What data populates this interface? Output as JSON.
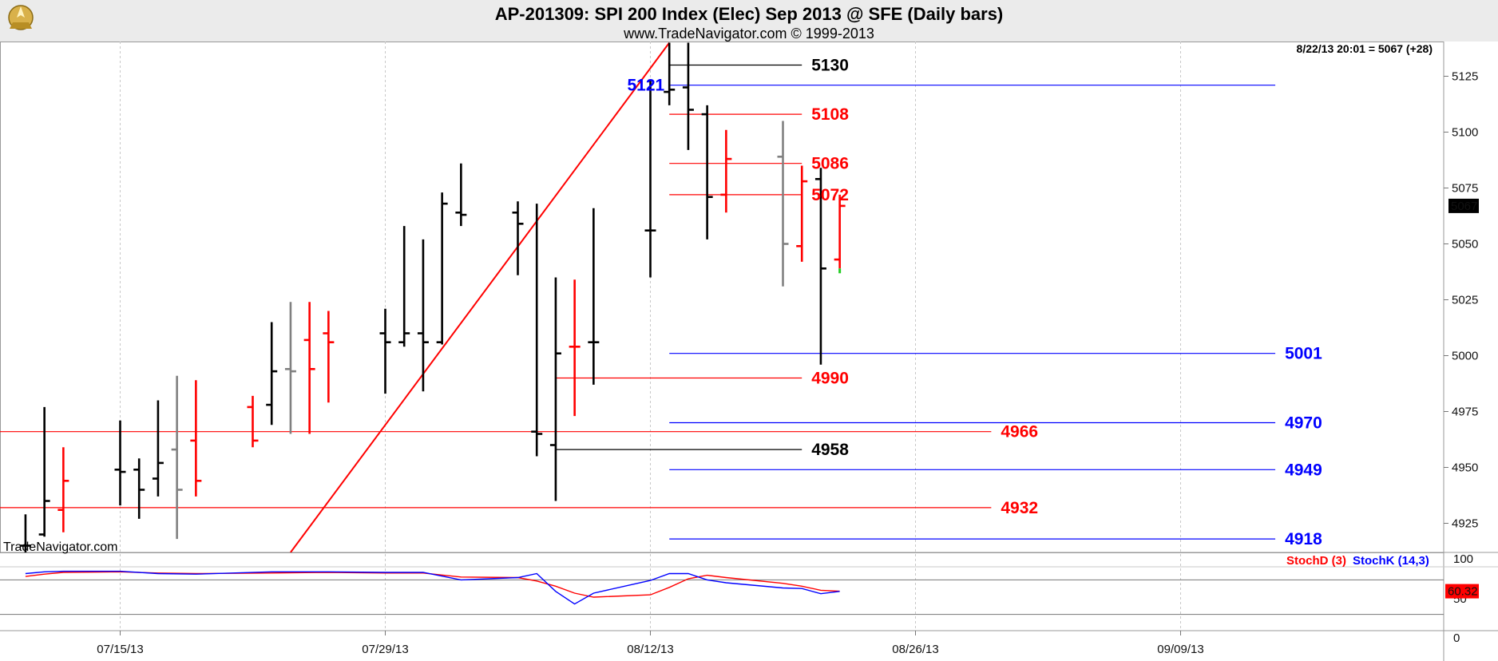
{
  "header": {
    "title": "AP-201309:  SPI 200 Index (Elec) Sep 2013 @ SFE  (Daily bars)",
    "subtitle": "www.TradeNavigator.com © 1999-2013",
    "last_quote": "8/22/13 20:01 = 5067 (+28)",
    "watermark": "TradeNavigator.com",
    "logo_icon": "trade-navigator-logo-icon"
  },
  "colors": {
    "up_bar": "#000000",
    "down_bar": "#ff0000",
    "neutral_bar": "#808080",
    "red_level": "#ff0000",
    "blue_level": "#0000ff",
    "black_level": "#000000",
    "trendline": "#ff0000",
    "stoch_d": "#ff0000",
    "stoch_k": "#0000ff",
    "last_price_box": "#000000",
    "stoch_value_box": "#ff0000"
  },
  "chart_data": [
    {
      "type": "ohlc",
      "x_ticks": [
        "07/15/13",
        "07/29/13",
        "08/12/13",
        "08/26/13",
        "09/09/13"
      ],
      "y_ticks": [
        4925,
        4950,
        4975,
        5000,
        5025,
        5050,
        5075,
        5100,
        5125
      ],
      "ylim": [
        4912,
        5140
      ],
      "last_price_label": "5067",
      "bars": [
        {
          "date": "07/10/13",
          "open": 4915,
          "high": 4929,
          "low": 4910,
          "close": 4915,
          "color": "black"
        },
        {
          "date": "07/11/13",
          "open": 4920,
          "high": 4977,
          "low": 4919,
          "close": 4935,
          "color": "black"
        },
        {
          "date": "07/12/13",
          "open": 4931,
          "high": 4959,
          "low": 4921,
          "close": 4944,
          "color": "red"
        },
        {
          "date": "07/15/13",
          "open": 4949,
          "high": 4971,
          "low": 4933,
          "close": 4948,
          "color": "black"
        },
        {
          "date": "07/16/13",
          "open": 4949,
          "high": 4954,
          "low": 4927,
          "close": 4940,
          "color": "black"
        },
        {
          "date": "07/17/13",
          "open": 4945,
          "high": 4980,
          "low": 4937,
          "close": 4952,
          "color": "black"
        },
        {
          "date": "07/18/13",
          "open": 4958,
          "high": 4991,
          "low": 4918,
          "close": 4940,
          "color": "gray"
        },
        {
          "date": "07/19/13",
          "open": 4962,
          "high": 4989,
          "low": 4937,
          "close": 4944,
          "color": "red"
        },
        {
          "date": "07/22/13",
          "open": 4977,
          "high": 4982,
          "low": 4959,
          "close": 4962,
          "color": "red"
        },
        {
          "date": "07/23/13",
          "open": 4978,
          "high": 5015,
          "low": 4969,
          "close": 4993,
          "color": "black"
        },
        {
          "date": "07/24/13",
          "open": 4994,
          "high": 5024,
          "low": 4965,
          "close": 4993,
          "color": "gray"
        },
        {
          "date": "07/25/13",
          "open": 5007,
          "high": 5024,
          "low": 4965,
          "close": 4994,
          "color": "red"
        },
        {
          "date": "07/26/13",
          "open": 5010,
          "high": 5020,
          "low": 4979,
          "close": 5006,
          "color": "red"
        },
        {
          "date": "07/29/13",
          "open": 5010,
          "high": 5021,
          "low": 4983,
          "close": 5006,
          "color": "black"
        },
        {
          "date": "07/30/13",
          "open": 5006,
          "high": 5058,
          "low": 5004,
          "close": 5010,
          "color": "black"
        },
        {
          "date": "07/31/13",
          "open": 5010,
          "high": 5052,
          "low": 4984,
          "close": 5006,
          "color": "black"
        },
        {
          "date": "08/01/13",
          "open": 5006,
          "high": 5073,
          "low": 5005,
          "close": 5068,
          "color": "black"
        },
        {
          "date": "08/02/13",
          "open": 5064,
          "high": 5086,
          "low": 5058,
          "close": 5063,
          "color": "black"
        },
        {
          "date": "08/05/13",
          "open": 5064,
          "high": 5069,
          "low": 5036,
          "close": 5059,
          "color": "black"
        },
        {
          "date": "08/06/13",
          "open": 4966,
          "high": 5068,
          "low": 4955,
          "close": 4965,
          "color": "black"
        },
        {
          "date": "08/07/13",
          "open": 4960,
          "high": 5035,
          "low": 4935,
          "close": 5001,
          "color": "black"
        },
        {
          "date": "08/08/13",
          "open": 5004,
          "high": 5034,
          "low": 4973,
          "close": 5004,
          "color": "red"
        },
        {
          "date": "08/09/13",
          "open": 5006,
          "high": 5066,
          "low": 4987,
          "close": 5006,
          "color": "black"
        },
        {
          "date": "08/12/13",
          "open": 5056,
          "high": 5123,
          "low": 5035,
          "close": 5056,
          "color": "black"
        },
        {
          "date": "08/13/13",
          "open": 5118,
          "high": 5140,
          "low": 5112,
          "close": 5119,
          "color": "black"
        },
        {
          "date": "08/14/13",
          "open": 5120,
          "high": 5140,
          "low": 5092,
          "close": 5110,
          "color": "black"
        },
        {
          "date": "08/15/13",
          "open": 5108,
          "high": 5112,
          "low": 5052,
          "close": 5071,
          "color": "black"
        },
        {
          "date": "08/16/13",
          "open": 5072,
          "high": 5101,
          "low": 5064,
          "close": 5088,
          "color": "red"
        },
        {
          "date": "08/19/13",
          "open": 5089,
          "high": 5105,
          "low": 5031,
          "close": 5050,
          "color": "gray"
        },
        {
          "date": "08/20/13",
          "open": 5049,
          "high": 5085,
          "low": 5042,
          "close": 5078,
          "color": "red"
        },
        {
          "date": "08/21/13",
          "open": 5079,
          "high": 5084,
          "low": 4996,
          "close": 5039,
          "color": "black"
        },
        {
          "date": "08/22/13",
          "open": 5043,
          "high": 5072,
          "low": 5039,
          "close": 5067,
          "color": "red"
        }
      ],
      "levels": [
        {
          "value": 5130,
          "label": "5130",
          "color": "black",
          "from": "08/13/13",
          "to": "08/20/13",
          "label_side": "right"
        },
        {
          "value": 5121,
          "label": "5121",
          "color": "blue",
          "from": "08/13/13",
          "to": "09/14/13",
          "label_side": "left"
        },
        {
          "value": 5108,
          "label": "5108",
          "color": "red",
          "from": "08/13/13",
          "to": "08/20/13",
          "label_side": "right"
        },
        {
          "value": 5086,
          "label": "5086",
          "color": "red",
          "from": "08/13/13",
          "to": "08/20/13",
          "label_side": "right"
        },
        {
          "value": 5072,
          "label": "5072",
          "color": "red",
          "from": "08/13/13",
          "to": "08/20/13",
          "label_side": "right"
        },
        {
          "value": 5001,
          "label": "5001",
          "color": "blue",
          "from": "08/13/13",
          "to": "09/14/13",
          "label_side": "right"
        },
        {
          "value": 4990,
          "label": "4990",
          "color": "red",
          "from": "08/07/13",
          "to": "08/20/13",
          "label_side": "right"
        },
        {
          "value": 4970,
          "label": "4970",
          "color": "blue",
          "from": "08/13/13",
          "to": "09/14/13",
          "label_side": "right"
        },
        {
          "value": 4966,
          "label": "4966",
          "color": "red",
          "from": "07/03/13",
          "to": "08/30/13",
          "label_side": "right"
        },
        {
          "value": 4958,
          "label": "4958",
          "color": "black",
          "from": "08/07/13",
          "to": "08/20/13",
          "label_side": "right"
        },
        {
          "value": 4949,
          "label": "4949",
          "color": "blue",
          "from": "08/13/13",
          "to": "09/14/13",
          "label_side": "right"
        },
        {
          "value": 4932,
          "label": "4932",
          "color": "red",
          "from": "07/03/13",
          "to": "08/30/13",
          "label_side": "right"
        },
        {
          "value": 4918,
          "label": "4918",
          "color": "blue",
          "from": "08/13/13",
          "to": "09/14/13",
          "label_side": "right"
        }
      ],
      "trendline": {
        "from": {
          "date": "07/24/13",
          "value": 4912
        },
        "to": {
          "date": "08/13/13",
          "value": 5140
        },
        "color": "red"
      }
    },
    {
      "type": "line",
      "title": "Stochastic",
      "ylim": [
        0,
        100
      ],
      "y_ticks": [
        0,
        50,
        100
      ],
      "value_label": "60.32",
      "series": [
        {
          "name": "StochD (3)",
          "color": "red",
          "points": [
            [
              "07/10/13",
              86
            ],
            [
              "07/11/13",
              90
            ],
            [
              "07/12/13",
              93
            ],
            [
              "07/15/13",
              94
            ],
            [
              "07/17/13",
              92
            ],
            [
              "07/19/13",
              91
            ],
            [
              "07/23/13",
              92
            ],
            [
              "07/26/13",
              93
            ],
            [
              "07/29/13",
              92
            ],
            [
              "07/31/13",
              92
            ],
            [
              "08/02/13",
              85
            ],
            [
              "08/05/13",
              84
            ],
            [
              "08/06/13",
              78
            ],
            [
              "08/07/13",
              69
            ],
            [
              "08/08/13",
              57
            ],
            [
              "08/09/13",
              50
            ],
            [
              "08/12/13",
              54
            ],
            [
              "08/13/13",
              67
            ],
            [
              "08/14/13",
              82
            ],
            [
              "08/15/13",
              88
            ],
            [
              "08/16/13",
              84
            ],
            [
              "08/19/13",
              74
            ],
            [
              "08/20/13",
              69
            ],
            [
              "08/21/13",
              62
            ],
            [
              "08/22/13",
              60.32
            ]
          ]
        },
        {
          "name": "StochK (14,3)",
          "color": "blue",
          "points": [
            [
              "07/10/13",
              91
            ],
            [
              "07/11/13",
              94
            ],
            [
              "07/12/13",
              95
            ],
            [
              "07/15/13",
              95
            ],
            [
              "07/17/13",
              91
            ],
            [
              "07/19/13",
              90
            ],
            [
              "07/23/13",
              94
            ],
            [
              "07/26/13",
              94
            ],
            [
              "07/29/13",
              93
            ],
            [
              "07/31/13",
              93
            ],
            [
              "08/02/13",
              80
            ],
            [
              "08/05/13",
              84
            ],
            [
              "08/06/13",
              91
            ],
            [
              "08/07/13",
              60
            ],
            [
              "08/08/13",
              38
            ],
            [
              "08/09/13",
              57
            ],
            [
              "08/12/13",
              79
            ],
            [
              "08/13/13",
              91
            ],
            [
              "08/14/13",
              91
            ],
            [
              "08/15/13",
              80
            ],
            [
              "08/16/13",
              75
            ],
            [
              "08/19/13",
              66
            ],
            [
              "08/20/13",
              65
            ],
            [
              "08/21/13",
              56
            ],
            [
              "08/22/13",
              60
            ]
          ]
        }
      ]
    }
  ]
}
